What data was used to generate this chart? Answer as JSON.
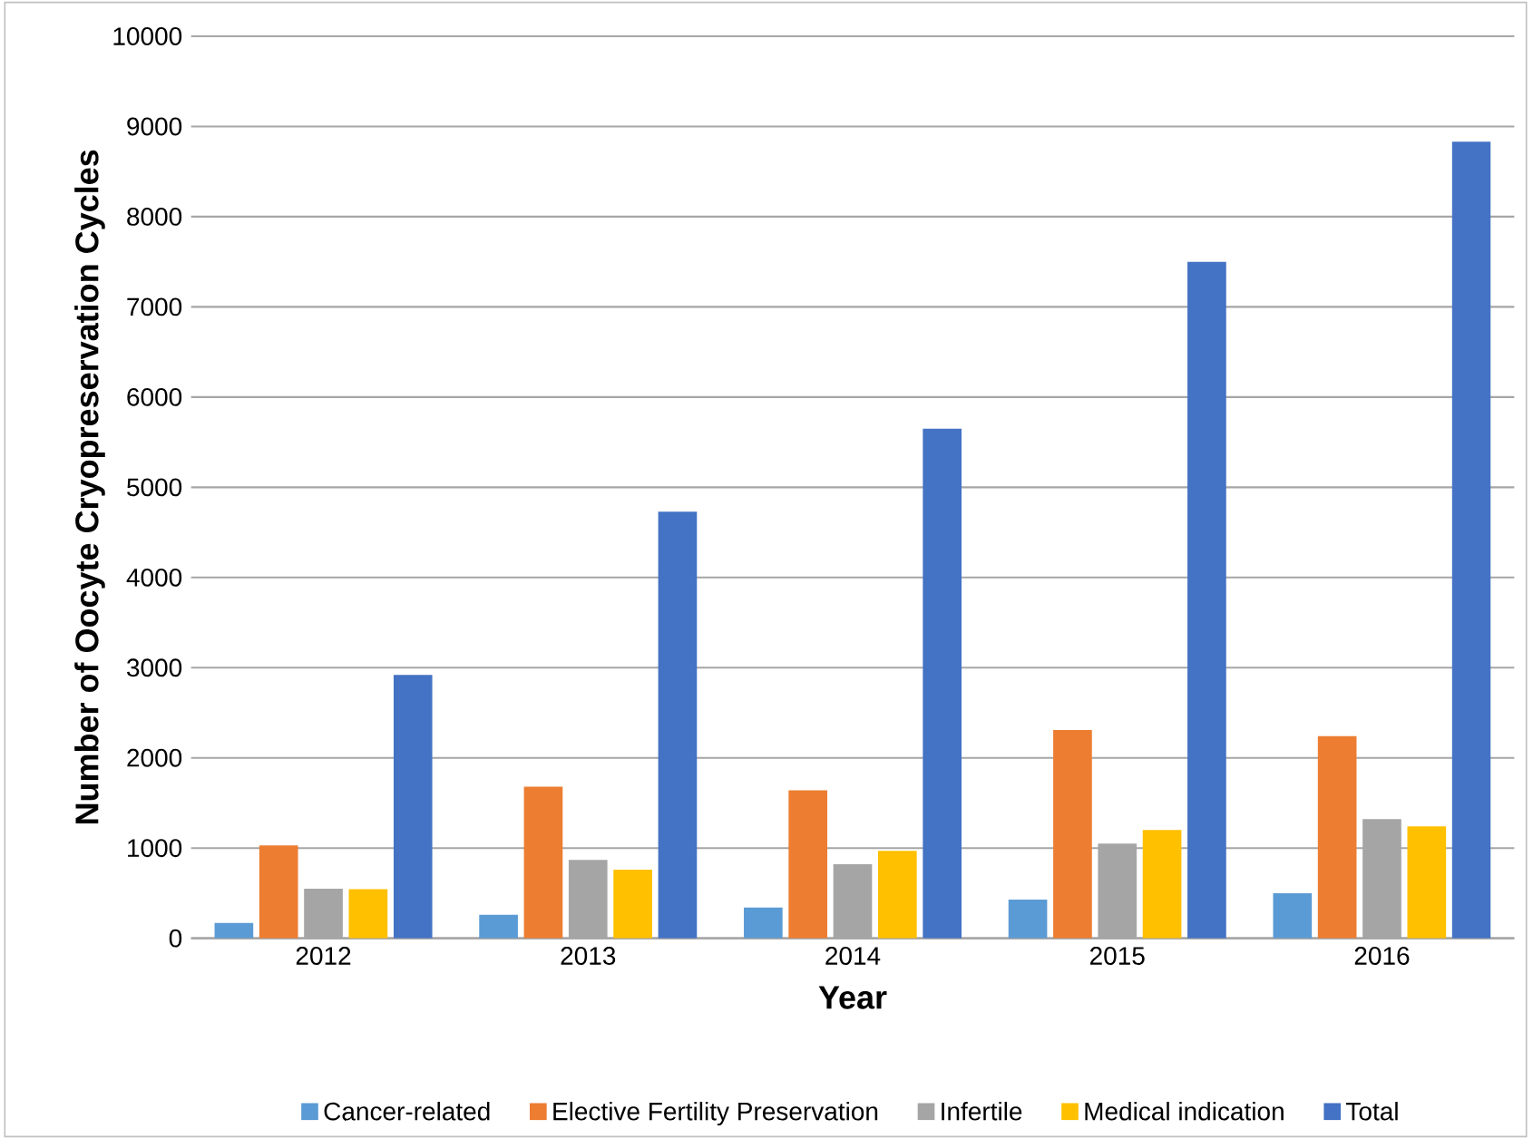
{
  "chart_data": {
    "type": "bar",
    "xlabel": "Year",
    "ylabel": "Number of Oocyte Cryopreservation Cycles",
    "categories": [
      "2012",
      "2013",
      "2014",
      "2015",
      "2016"
    ],
    "series": [
      {
        "name": "Cancer-related",
        "color": "#5b9bd5",
        "values": [
          170,
          260,
          340,
          430,
          500
        ]
      },
      {
        "name": "Elective Fertility Preservation",
        "color": "#ed7d31",
        "values": [
          1030,
          1680,
          1640,
          2310,
          2240
        ]
      },
      {
        "name": "Infertile",
        "color": "#a5a5a5",
        "values": [
          550,
          870,
          820,
          1050,
          1320
        ]
      },
      {
        "name": "Medical indication",
        "color": "#ffc000",
        "values": [
          545,
          760,
          970,
          1200,
          1240
        ]
      },
      {
        "name": "Total",
        "color": "#4472c4",
        "values": [
          2920,
          4730,
          5650,
          7500,
          8830
        ]
      }
    ],
    "ylim": [
      0,
      10000
    ],
    "yticks": [
      0,
      1000,
      2000,
      3000,
      4000,
      5000,
      6000,
      7000,
      8000,
      9000,
      10000
    ],
    "grid": "y",
    "legend": "bottom"
  }
}
